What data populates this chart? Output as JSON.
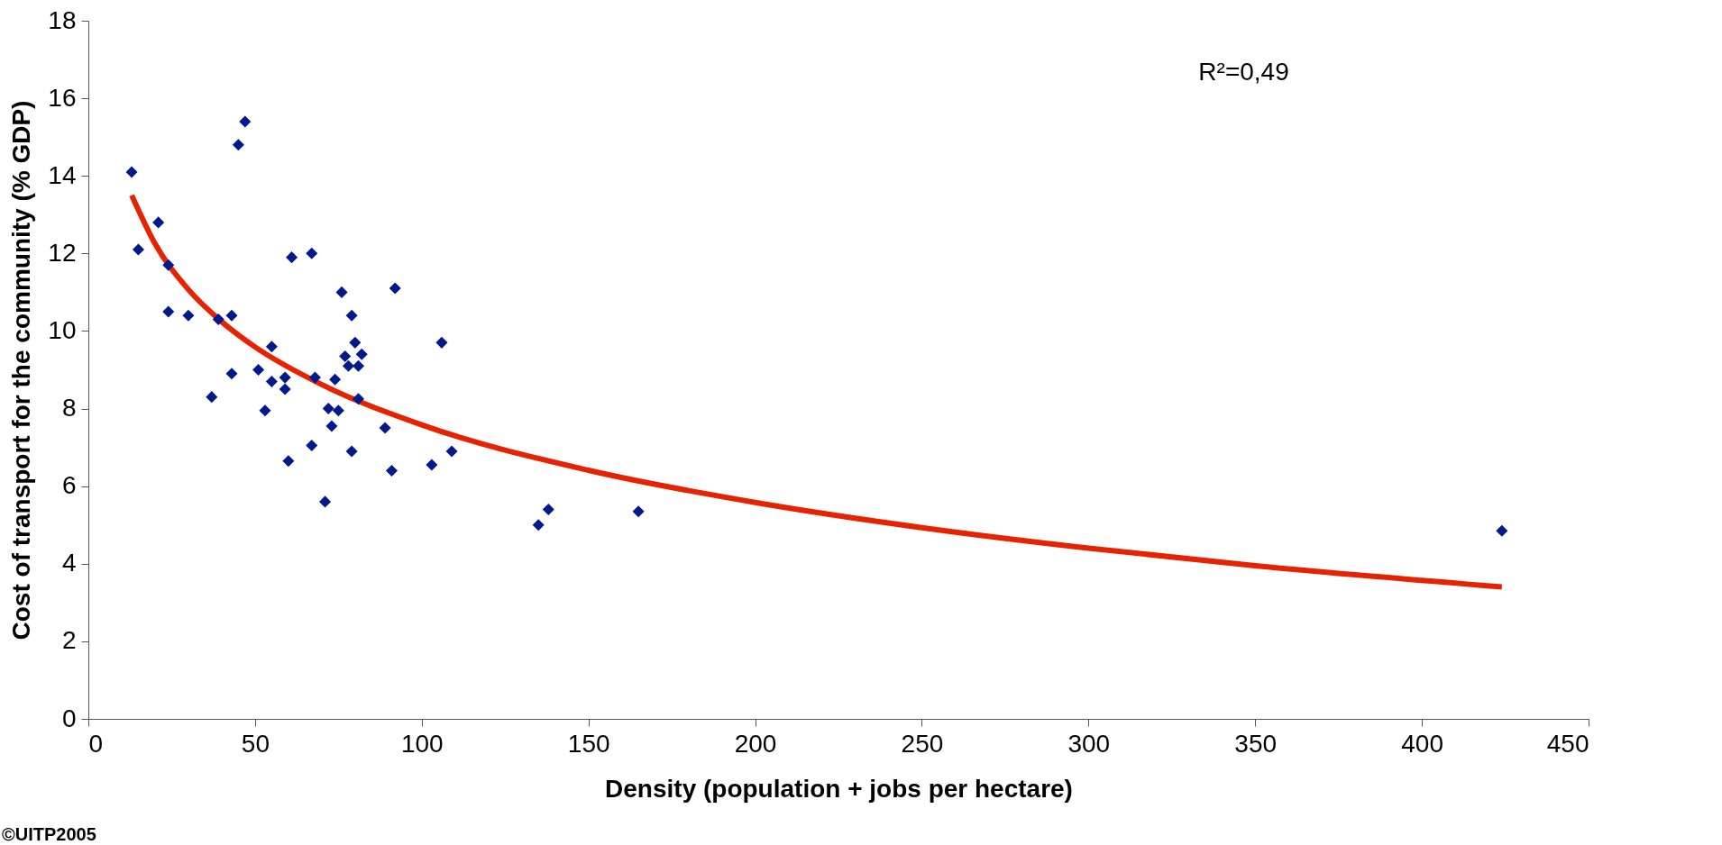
{
  "chart_data": {
    "type": "scatter",
    "xlabel": "Density (population + jobs per hectare)",
    "ylabel": "Cost of transport for the community (% GDP)",
    "xlim": [
      0,
      450
    ],
    "xticks": [
      0,
      50,
      100,
      150,
      200,
      250,
      300,
      350,
      400,
      450
    ],
    "ylim": [
      0,
      18
    ],
    "yticks": [
      0,
      2,
      4,
      6,
      8,
      10,
      12,
      14,
      16,
      18
    ],
    "grid": false,
    "marker": "diamond",
    "annotations": [
      "R²=0,49",
      "©UITP2005"
    ],
    "series": [
      {
        "color": "#001a8c",
        "x": [
          13,
          15,
          21,
          24,
          24,
          30,
          37,
          39,
          43,
          43,
          45,
          47,
          51,
          53,
          55,
          55,
          59,
          59,
          60,
          61,
          67,
          67,
          68,
          71,
          72,
          73,
          74,
          75,
          76,
          77,
          78,
          79,
          79,
          80,
          81,
          81,
          82,
          89,
          91,
          92,
          103,
          106,
          109,
          135,
          138,
          165,
          424
        ],
        "values": [
          14.1,
          12.1,
          12.8,
          11.7,
          10.5,
          10.4,
          8.3,
          10.3,
          10.4,
          8.9,
          14.8,
          15.4,
          9.0,
          7.95,
          9.6,
          8.7,
          8.8,
          8.5,
          6.65,
          11.9,
          12.0,
          7.05,
          8.8,
          5.6,
          8.0,
          7.55,
          8.75,
          7.95,
          11.0,
          9.35,
          9.1,
          10.4,
          6.9,
          9.7,
          9.1,
          8.25,
          9.4,
          7.5,
          6.4,
          11.1,
          6.55,
          9.7,
          6.9,
          5.0,
          5.4,
          5.35,
          4.85
        ]
      },
      {
        "type": "line",
        "color": "#e62200",
        "line_style": "solid",
        "marker": "none",
        "x": [
          13,
          20,
          30,
          40,
          50,
          70,
          100,
          150,
          200,
          250,
          300,
          350,
          424
        ],
        "values": [
          13.5,
          12.25,
          11.07,
          10.24,
          9.59,
          8.62,
          7.58,
          6.41,
          5.58,
          4.93,
          4.4,
          3.95,
          3.4
        ]
      }
    ]
  }
}
